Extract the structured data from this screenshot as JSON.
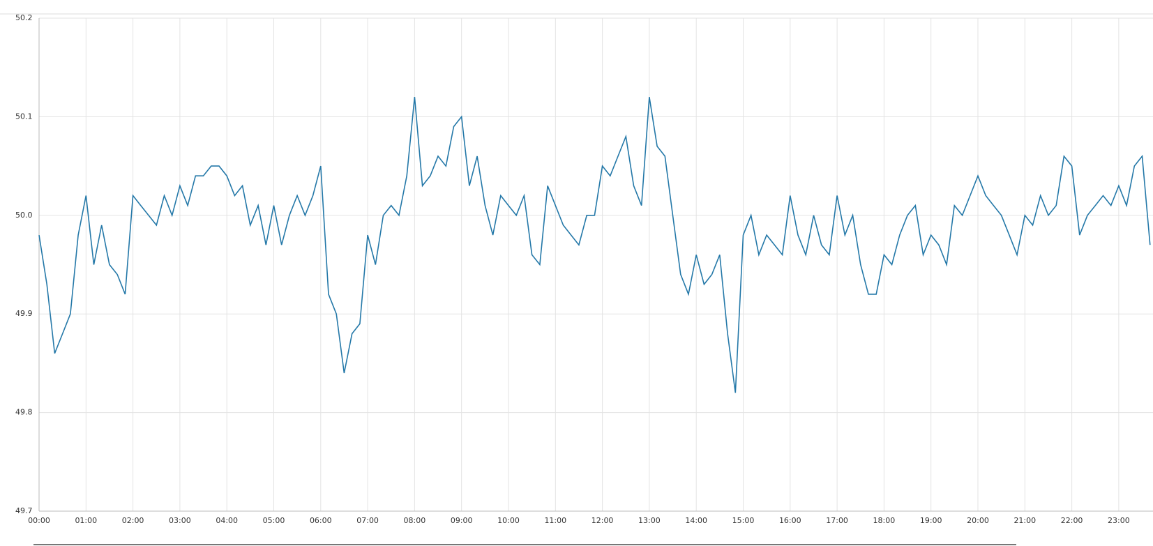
{
  "chart_data": {
    "type": "line",
    "x": [
      "00:00",
      "00:10",
      "00:20",
      "00:30",
      "00:40",
      "00:50",
      "01:00",
      "01:10",
      "01:20",
      "01:30",
      "01:40",
      "01:50",
      "02:00",
      "02:10",
      "02:20",
      "02:30",
      "02:40",
      "02:50",
      "03:00",
      "03:10",
      "03:20",
      "03:30",
      "03:40",
      "03:50",
      "04:00",
      "04:10",
      "04:20",
      "04:30",
      "04:40",
      "04:50",
      "05:00",
      "05:10",
      "05:20",
      "05:30",
      "05:40",
      "05:50",
      "06:00",
      "06:10",
      "06:20",
      "06:30",
      "06:40",
      "06:50",
      "07:00",
      "07:10",
      "07:20",
      "07:30",
      "07:40",
      "07:50",
      "08:00",
      "08:10",
      "08:20",
      "08:30",
      "08:40",
      "08:50",
      "09:00",
      "09:10",
      "09:20",
      "09:30",
      "09:40",
      "09:50",
      "10:00",
      "10:10",
      "10:20",
      "10:30",
      "10:40",
      "10:50",
      "11:00",
      "11:10",
      "11:20",
      "11:30",
      "11:40",
      "11:50",
      "12:00",
      "12:10",
      "12:20",
      "12:30",
      "12:40",
      "12:50",
      "13:00",
      "13:10",
      "13:20",
      "13:30",
      "13:40",
      "13:50",
      "14:00",
      "14:10",
      "14:20",
      "14:30",
      "14:40",
      "14:50",
      "15:00",
      "15:10",
      "15:20",
      "15:30",
      "15:40",
      "15:50",
      "16:00",
      "16:10",
      "16:20",
      "16:30",
      "16:40",
      "16:50",
      "17:00",
      "17:10",
      "17:20",
      "17:30",
      "17:40",
      "17:50",
      "18:00",
      "18:10",
      "18:20",
      "18:30",
      "18:40",
      "18:50",
      "19:00",
      "19:10",
      "19:20",
      "19:30",
      "19:40",
      "19:50",
      "20:00",
      "20:10",
      "20:20",
      "20:30",
      "20:40",
      "20:50",
      "21:00",
      "21:10",
      "21:20",
      "21:30",
      "21:40",
      "21:50",
      "22:00",
      "22:10",
      "22:20",
      "22:30",
      "22:40",
      "22:50",
      "23:00",
      "23:10",
      "23:20",
      "23:30",
      "23:40"
    ],
    "series": [
      {
        "color": "#2478a8",
        "values": [
          49.98,
          49.93,
          49.86,
          49.88,
          49.9,
          49.98,
          50.02,
          49.95,
          49.99,
          49.95,
          49.94,
          49.92,
          50.02,
          50.01,
          50.0,
          49.99,
          50.02,
          50.0,
          50.03,
          50.01,
          50.04,
          50.04,
          50.05,
          50.05,
          50.04,
          50.02,
          50.03,
          49.99,
          50.01,
          49.97,
          50.01,
          49.97,
          50.0,
          50.02,
          50.0,
          50.02,
          50.05,
          49.92,
          49.9,
          49.84,
          49.88,
          49.89,
          49.98,
          49.95,
          50.0,
          50.01,
          50.0,
          50.04,
          50.12,
          50.03,
          50.04,
          50.06,
          50.05,
          50.09,
          50.1,
          50.03,
          50.06,
          50.01,
          49.98,
          50.02,
          50.01,
          50.0,
          50.02,
          49.96,
          49.95,
          50.03,
          50.01,
          49.99,
          49.98,
          49.97,
          50.0,
          50.0,
          50.05,
          50.04,
          50.06,
          50.08,
          50.03,
          50.01,
          50.12,
          50.07,
          50.06,
          50.0,
          49.94,
          49.92,
          49.96,
          49.93,
          49.94,
          49.96,
          49.88,
          49.82,
          49.98,
          50.0,
          49.96,
          49.98,
          49.97,
          49.96,
          50.02,
          49.98,
          49.96,
          50.0,
          49.97,
          49.96,
          50.02,
          49.98,
          50.0,
          49.95,
          49.92,
          49.92,
          49.96,
          49.95,
          49.98,
          50.0,
          50.01,
          49.96,
          49.98,
          49.97,
          49.95,
          50.01,
          50.0,
          50.02,
          50.04,
          50.02,
          50.01,
          50.0,
          49.98,
          49.96,
          50.0,
          49.99,
          50.02,
          50.0,
          50.01,
          50.06,
          50.05,
          49.98,
          50.0,
          50.01,
          50.02,
          50.01,
          50.03,
          50.01,
          50.05,
          50.06,
          49.97
        ]
      }
    ],
    "xlim": [
      "00:00",
      "23:40"
    ],
    "xticks": [
      "00:00",
      "01:00",
      "02:00",
      "03:00",
      "04:00",
      "05:00",
      "06:00",
      "07:00",
      "08:00",
      "09:00",
      "10:00",
      "11:00",
      "12:00",
      "13:00",
      "14:00",
      "15:00",
      "16:00",
      "17:00",
      "18:00",
      "19:00",
      "20:00",
      "21:00",
      "22:00",
      "23:00"
    ],
    "ylim": [
      49.7,
      50.2
    ],
    "yticks": [
      49.7,
      49.8,
      49.9,
      {
        "value": 50,
        "label": "50.0"
      },
      50.1,
      50.2
    ],
    "grid": true
  }
}
